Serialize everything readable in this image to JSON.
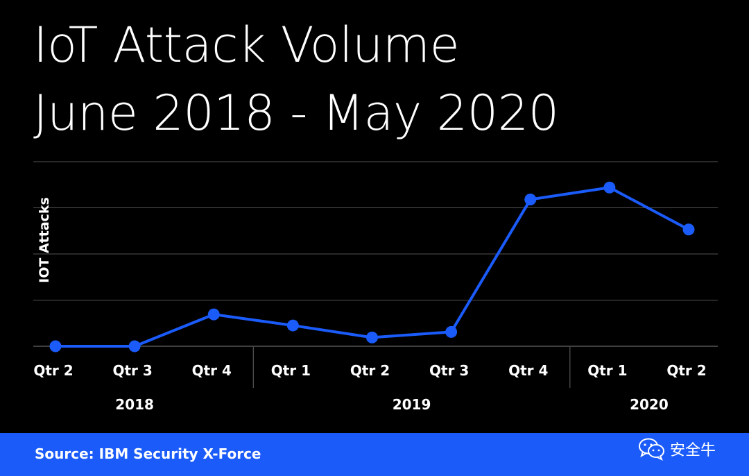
{
  "title_line1": "IoT Attack Volume",
  "title_line2": "June 2018 - May 2020",
  "source": "Source:  IBM Security X-Force",
  "watermark": "安全牛",
  "colors": {
    "line": "#1a5bfa",
    "footer": "#1a5bfa",
    "background": "#000000",
    "grid": "#555555"
  },
  "chart_data": {
    "type": "line",
    "ylabel": "IOT Attacks",
    "grid": true,
    "y_ticks_shown": false,
    "ylim": [
      0,
      4
    ],
    "categories": [
      "Qtr 2",
      "Qtr 3",
      "Qtr 4",
      "Qtr 1",
      "Qtr 2",
      "Qtr 3",
      "Qtr 4",
      "Qtr 1",
      "Qtr 2"
    ],
    "groups": [
      {
        "label": "2018",
        "count": 3
      },
      {
        "label": "2019",
        "count": 4
      },
      {
        "label": "2020",
        "count": 2
      }
    ],
    "series": [
      {
        "values": [
          0.0,
          0.0,
          0.69,
          0.45,
          0.19,
          0.31,
          3.18,
          3.44,
          2.53
        ]
      }
    ]
  }
}
